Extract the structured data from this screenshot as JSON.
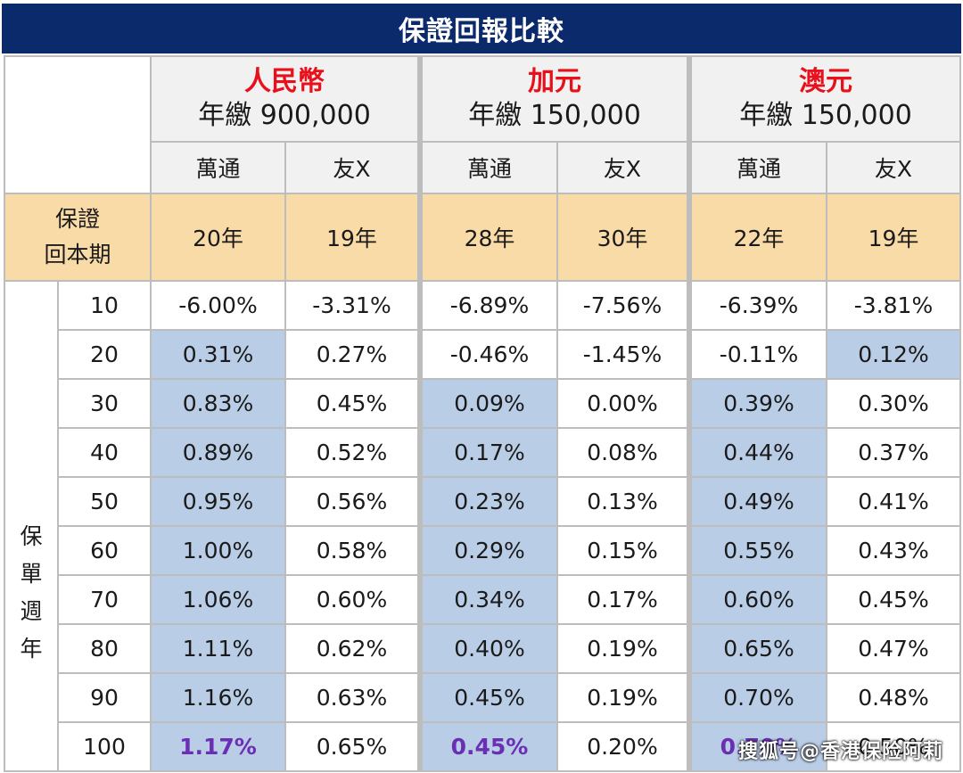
{
  "title": "保證回報比較",
  "currencies": [
    {
      "name": "人民幣",
      "premium": "年繳 900,000"
    },
    {
      "name": "加元",
      "premium": "年繳 150,000"
    },
    {
      "name": "澳元",
      "premium": "年繳 150,000"
    }
  ],
  "companies": [
    "萬通",
    "友X",
    "萬通",
    "友X",
    "萬通",
    "友X"
  ],
  "breakeven": {
    "label_line1": "保證",
    "label_line2": "回本期",
    "values": [
      "20年",
      "19年",
      "28年",
      "30年",
      "22年",
      "19年"
    ]
  },
  "policy_year_label": [
    "保",
    "單",
    "週",
    "年"
  ],
  "rows": [
    {
      "year": "10",
      "cells": [
        "-6.00%",
        "-3.31%",
        "-6.89%",
        "-7.56%",
        "-6.39%",
        "-3.81%"
      ],
      "highlight": [
        false,
        false,
        false,
        false,
        false,
        false
      ]
    },
    {
      "year": "20",
      "cells": [
        "0.31%",
        "0.27%",
        "-0.46%",
        "-1.45%",
        "-0.11%",
        "0.12%"
      ],
      "highlight": [
        true,
        false,
        false,
        false,
        false,
        true
      ]
    },
    {
      "year": "30",
      "cells": [
        "0.83%",
        "0.45%",
        "0.09%",
        "0.00%",
        "0.39%",
        "0.30%"
      ],
      "highlight": [
        true,
        false,
        true,
        false,
        true,
        false
      ]
    },
    {
      "year": "40",
      "cells": [
        "0.89%",
        "0.52%",
        "0.17%",
        "0.08%",
        "0.44%",
        "0.37%"
      ],
      "highlight": [
        true,
        false,
        true,
        false,
        true,
        false
      ]
    },
    {
      "year": "50",
      "cells": [
        "0.95%",
        "0.56%",
        "0.23%",
        "0.13%",
        "0.49%",
        "0.41%"
      ],
      "highlight": [
        true,
        false,
        true,
        false,
        true,
        false
      ]
    },
    {
      "year": "60",
      "cells": [
        "1.00%",
        "0.58%",
        "0.29%",
        "0.15%",
        "0.55%",
        "0.43%"
      ],
      "highlight": [
        true,
        false,
        true,
        false,
        true,
        false
      ]
    },
    {
      "year": "70",
      "cells": [
        "1.06%",
        "0.60%",
        "0.34%",
        "0.17%",
        "0.60%",
        "0.45%"
      ],
      "highlight": [
        true,
        false,
        true,
        false,
        true,
        false
      ]
    },
    {
      "year": "80",
      "cells": [
        "1.11%",
        "0.62%",
        "0.40%",
        "0.19%",
        "0.65%",
        "0.47%"
      ],
      "highlight": [
        true,
        false,
        true,
        false,
        true,
        false
      ]
    },
    {
      "year": "90",
      "cells": [
        "1.16%",
        "0.63%",
        "0.45%",
        "0.19%",
        "0.70%",
        "0.48%"
      ],
      "highlight": [
        true,
        false,
        true,
        false,
        true,
        false
      ]
    },
    {
      "year": "100",
      "cells": [
        "1.17%",
        "0.65%",
        "0.45%",
        "0.20%",
        "0.70%",
        "0.50%"
      ],
      "highlight": [
        true,
        false,
        true,
        false,
        true,
        false
      ],
      "best": [
        true,
        false,
        true,
        false,
        true,
        false
      ]
    }
  ],
  "watermark": "搜狐号@香港保险阿莉",
  "colors": {
    "title_bg": "#0a2a6b",
    "currency_red": "#e8101a",
    "breakeven_bg": "#f8dba7",
    "highlight_bg": "#b9cde6",
    "best_purple": "#6b2fb3"
  }
}
